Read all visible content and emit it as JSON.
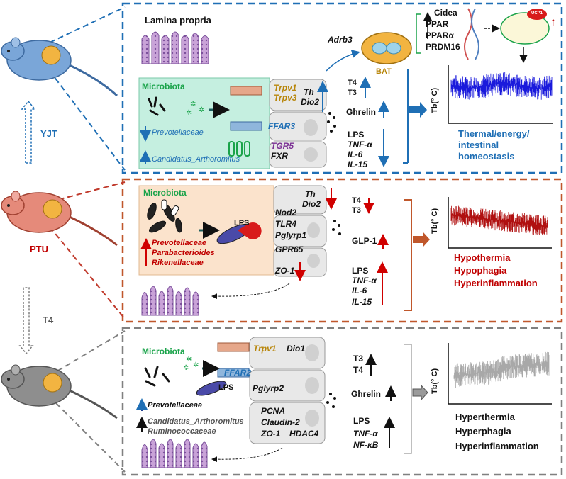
{
  "left_labels": {
    "yjt": "YJT",
    "ptu": "PTU",
    "t4": "T4"
  },
  "panel_top": {
    "lamina_propria": "Lamina propria",
    "microbiota": "Microbiota",
    "prevotellaceae": "Prevotellaceae",
    "candidatus": "Candidatus_Arthoromitus",
    "trpv1": "Trpv1",
    "trpv3": "Trpv3",
    "th": "Th",
    "dio2": "Dio2",
    "ffar3": "FFAR3",
    "tgr5": "TGR5",
    "fxr": "FXR",
    "adrb3": "Adrb3",
    "bat": "BAT",
    "t4": "T4",
    "t3": "T3",
    "ghrelin": "Ghrelin",
    "lps": "LPS",
    "tnf": "TNF-α",
    "il6": "IL-6",
    "il15": "IL-15",
    "cidea": "Cidea",
    "ppar": "PPAR",
    "ppara": "PPARα",
    "prdm16": "PRDM16",
    "ucp1": "UCP1",
    "tb": "Tb(° C)",
    "outcome_1": "Thermal/energy/",
    "outcome_2": "intestinal",
    "outcome_3": "homeostasis"
  },
  "panel_mid": {
    "microbiota": "Microbiota",
    "prevotellaceae": "Prevotellaceae",
    "parabacterioides": "Parabacterioides",
    "rikenellaceae": "Rikenellaceae",
    "lps_bact": "LPS",
    "th": "Th",
    "dio2": "Dio2",
    "nod2": "Nod2",
    "tlr4": "TLR4",
    "pglyrp1": "Pglyrp1",
    "gpr65": "GPR65",
    "zo1": "ZO-1",
    "t4": "T4",
    "t3": "T3",
    "glp1": "GLP-1",
    "lps": "LPS",
    "tnf": "TNF-α",
    "il6": "IL-6",
    "il15": "IL-15",
    "tb": "Tb(° C)",
    "outcome_1": "Hypothermia",
    "outcome_2": "Hypophagia",
    "outcome_3": "Hyperinflammation"
  },
  "panel_bot": {
    "microbiota": "Microbiota",
    "trpv1": "Trpv1",
    "dio1": "Dio1",
    "ffar2": "FFAR2",
    "lps_bact": "LPS",
    "pglyrp2": "Pglyrp2",
    "prevotellaceae": "Prevotellaceae",
    "candidatus": "Candidatus_Arthoromitus",
    "ruminococcaceae": "Ruminococcaceae",
    "pcna": "PCNA",
    "claudin2": "Claudin-2",
    "zo1": "ZO-1",
    "hdac4": "HDAC4",
    "t3": "T3",
    "t4": "T4",
    "ghrelin": "Ghrelin",
    "lps": "LPS",
    "tnf": "TNF-α",
    "nfkb": "NF-κB",
    "tb": "Tb(° C)",
    "outcome_1": "Hyperthermia",
    "outcome_2": "Hyperphagia",
    "outcome_3": "Hyperinflammation"
  },
  "colors": {
    "yjt": "#1f6fb5",
    "ptu": "#c0392b",
    "t4": "#808080",
    "blue_trace": "#1a1adc",
    "red_trace": "#b01010",
    "gray_trace": "#a8a8a8"
  }
}
